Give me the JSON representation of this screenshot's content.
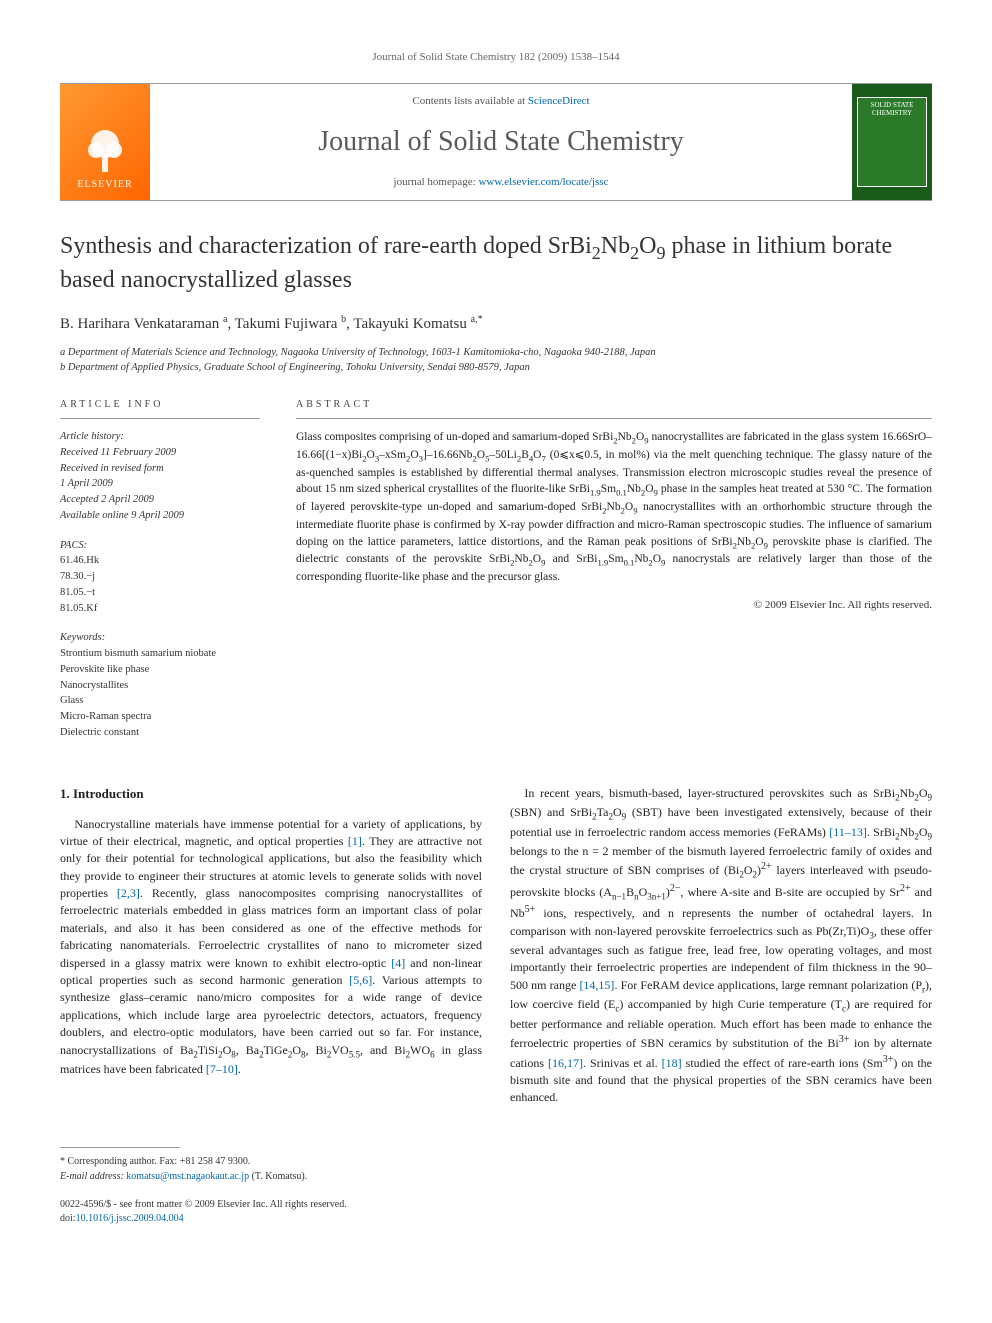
{
  "running_head": "Journal of Solid State Chemistry 182 (2009) 1538–1544",
  "masthead": {
    "contents_prefix": "Contents lists available at ",
    "contents_link": "ScienceDirect",
    "journal_title": "Journal of Solid State Chemistry",
    "homepage_prefix": "journal homepage: ",
    "homepage_url": "www.elsevier.com/locate/jssc",
    "publisher_label": "ELSEVIER",
    "cover_text": "SOLID STATE CHEMISTRY"
  },
  "article": {
    "title_html": "Synthesis and characterization of rare-earth doped SrBi<sub>2</sub>Nb<sub>2</sub>O<sub>9</sub> phase in lithium borate based nanocrystallized glasses",
    "authors_html": "B. Harihara Venkataraman <sup>a</sup>, Takumi Fujiwara <sup>b</sup>, Takayuki Komatsu <sup>a,*</sup>",
    "affiliations": [
      "a Department of Materials Science and Technology, Nagaoka University of Technology, 1603-1 Kamitomioka-cho, Nagaoka 940-2188, Japan",
      "b Department of Applied Physics, Graduate School of Engineering, Tohoku University, Sendai 980-8579, Japan"
    ]
  },
  "info": {
    "label": "ARTICLE INFO",
    "history_label": "Article history:",
    "history": [
      "Received 11 February 2009",
      "Received in revised form",
      "1 April 2009",
      "Accepted 2 April 2009",
      "Available online 9 April 2009"
    ],
    "pacs_label": "PACS:",
    "pacs": [
      "61.46.Hk",
      "78.30.−j",
      "81.05.−t",
      "81.05.Kf"
    ],
    "keywords_label": "Keywords:",
    "keywords": [
      "Strontium bismuth samarium niobate",
      "Perovskite like phase",
      "Nanocrystallites",
      "Glass",
      "Micro-Raman spectra",
      "Dielectric constant"
    ]
  },
  "abstract": {
    "label": "ABSTRACT",
    "text_html": "Glass composites comprising of un-doped and samarium-doped SrBi<sub>2</sub>Nb<sub>2</sub>O<sub>9</sub> nanocrystallites are fabricated in the glass system 16.66SrO–16.66[(1−x)Bi<sub>2</sub>O<sub>3</sub>–xSm<sub>2</sub>O<sub>3</sub>]–16.66Nb<sub>2</sub>O<sub>5</sub>–50Li<sub>2</sub>B<sub>4</sub>O<sub>7</sub> (0⩽x⩽0.5, in mol%) via the melt quenching technique. The glassy nature of the as-quenched samples is established by differential thermal analyses. Transmission electron microscopic studies reveal the presence of about 15 nm sized spherical crystallites of the fluorite-like SrBi<sub>1.9</sub>Sm<sub>0.1</sub>Nb<sub>2</sub>O<sub>9</sub> phase in the samples heat treated at 530 °C. The formation of layered perovskite-type un-doped and samarium-doped SrBi<sub>2</sub>Nb<sub>2</sub>O<sub>9</sub> nanocrystallites with an orthorhombic structure through the intermediate fluorite phase is confirmed by X-ray powder diffraction and micro-Raman spectroscopic studies. The influence of samarium doping on the lattice parameters, lattice distortions, and the Raman peak positions of SrBi<sub>2</sub>Nb<sub>2</sub>O<sub>9</sub> perovskite phase is clarified. The dielectric constants of the perovskite SrBi<sub>2</sub>Nb<sub>2</sub>O<sub>9</sub> and SrBi<sub>1.9</sub>Sm<sub>0.1</sub>Nb<sub>2</sub>O<sub>9</sub> nanocrystals are relatively larger than those of the corresponding fluorite-like phase and the precursor glass.",
    "copyright": "© 2009 Elsevier Inc. All rights reserved."
  },
  "body": {
    "section_heading": "1. Introduction",
    "para1_html": "Nanocrystalline materials have immense potential for a variety of applications, by virtue of their electrical, magnetic, and optical properties <span class=\"ref-link\">[1]</span>. They are attractive not only for their potential for technological applications, but also the feasibility which they provide to engineer their structures at atomic levels to generate solids with novel properties <span class=\"ref-link\">[2,3]</span>. Recently, glass nanocomposites comprising nanocrystallites of ferroelectric materials embedded in glass matrices form an important class of polar materials, and also it has been considered as one of the effective methods for fabricating nanomaterials. Ferroelectric crystallites of nano to micrometer sized dispersed in a glassy matrix were known to exhibit electro-optic <span class=\"ref-link\">[4]</span> and non-linear optical properties such as second harmonic generation <span class=\"ref-link\">[5,6]</span>. Various attempts to synthesize glass–ceramic nano/micro composites for a wide range of device applications, which include large area pyroelectric detectors, actuators, frequency doublers, and electro-optic modulators, have been carried out so far. For instance, nanocrystallizations of Ba<sub>2</sub>TiSi<sub>2</sub>O<sub>8</sub>, Ba<sub>2</sub>TiGe<sub>2</sub>O<sub>8</sub>, Bi<sub>2</sub>VO<sub>5.5</sub>, and Bi<sub>2</sub>WO<sub>6</sub> in glass matrices have been fabricated <span class=\"ref-link\">[7–10]</span>.",
    "para2_html": "In recent years, bismuth-based, layer-structured perovskites such as SrBi<sub>2</sub>Nb<sub>2</sub>O<sub>9</sub> (SBN) and SrBi<sub>2</sub>Ta<sub>2</sub>O<sub>9</sub> (SBT) have been investigated extensively, because of their potential use in ferroelectric random access memories (FeRAMs) <span class=\"ref-link\">[11–13]</span>. SrBi<sub>2</sub>Nb<sub>2</sub>O<sub>9</sub> belongs to the n = 2 member of the bismuth layered ferroelectric family of oxides and the crystal structure of SBN comprises of (Bi<sub>2</sub>O<sub>2</sub>)<sup>2+</sup> layers interleaved with pseudo-perovskite blocks (A<sub>n−1</sub>B<sub>n</sub>O<sub>3n+1</sub>)<sup>2−</sup>, where A-site and B-site are occupied by Sr<sup>2+</sup> and Nb<sup>5+</sup> ions, respectively, and n represents the number of octahedral layers. In comparison with non-layered perovskite ferroelectrics such as Pb(Zr,Ti)O<sub>3</sub>, these offer several advantages such as fatigue free, lead free, low operating voltages, and most importantly their ferroelectric properties are independent of film thickness in the 90–500 nm range <span class=\"ref-link\">[14,15]</span>. For FeRAM device applications, large remnant polarization (P<sub>r</sub>), low coercive field (E<sub>c</sub>) accompanied by high Curie temperature (T<sub>c</sub>) are required for better performance and reliable operation. Much effort has been made to enhance the ferroelectric properties of SBN ceramics by substitution of the Bi<sup>3+</sup> ion by alternate cations <span class=\"ref-link\">[16,17]</span>. Srinivas et al. <span class=\"ref-link\">[18]</span> studied the effect of rare-earth ions (Sm<sup>3+</sup>) on the bismuth site and found that the physical properties of the SBN ceramics have been enhanced."
  },
  "footnotes": {
    "corr": "* Corresponding author. Fax: +81 258 47 9300.",
    "email_label": "E-mail address: ",
    "email": "komatsu@mst.nagaokaut.ac.jp",
    "email_suffix": " (T. Komatsu)."
  },
  "footer": {
    "line1": "0022-4596/$ - see front matter © 2009 Elsevier Inc. All rights reserved.",
    "doi_prefix": "doi:",
    "doi": "10.1016/j.jssc.2009.04.004"
  },
  "colors": {
    "link": "#0066aa",
    "text": "#222222",
    "rule": "#999999",
    "elsevier_bg": "#ff8822",
    "cover_bg": "#1a5a1a"
  }
}
